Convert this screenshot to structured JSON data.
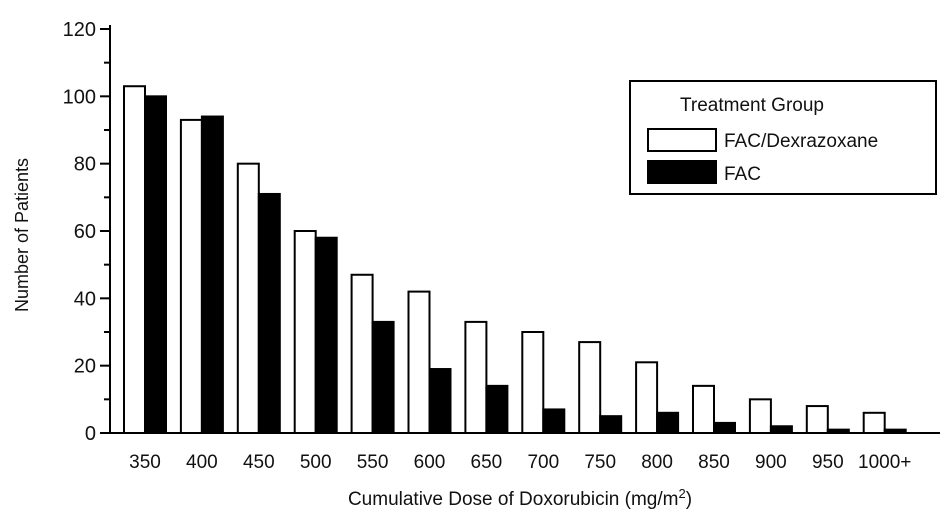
{
  "chart_data": {
    "type": "bar",
    "xlabel": "Cumulative Dose of Doxorubicin (mg/m",
    "xlabel_superscript": "2",
    "xlabel_close": ")",
    "ylabel": "Number of Patients",
    "ylim": [
      0,
      120
    ],
    "yticks": [
      0,
      20,
      40,
      60,
      80,
      100,
      120
    ],
    "categories": [
      "350",
      "400",
      "450",
      "500",
      "550",
      "600",
      "650",
      "700",
      "750",
      "800",
      "850",
      "900",
      "950",
      "1000+"
    ],
    "legend": {
      "title": "Treatment Group",
      "position": "top-right"
    },
    "series": [
      {
        "name": "FAC/Dexrazoxane",
        "color": "#ffffff",
        "values": [
          103,
          93,
          80,
          60,
          47,
          42,
          33,
          30,
          27,
          21,
          14,
          10,
          8,
          6
        ]
      },
      {
        "name": "FAC",
        "color": "#000000",
        "values": [
          100,
          94,
          71,
          58,
          33,
          19,
          14,
          7,
          5,
          6,
          3,
          2,
          1,
          1
        ]
      }
    ]
  }
}
